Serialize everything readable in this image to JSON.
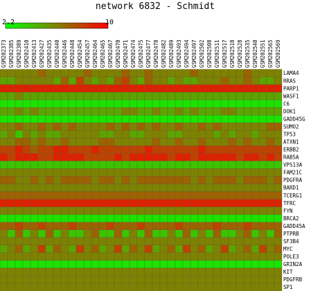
{
  "chart_data": {
    "type": "heatmap",
    "title": "network 6832 - Schmidt",
    "color_scale": {
      "min": 2.2,
      "max": 10,
      "min_label": "2.2",
      "max_label": "10",
      "low_color": "#00ff00",
      "mid_color": "#808000",
      "high_color": "#ff0000",
      "border_color": "#000000"
    },
    "columns": [
      "GSM202373",
      "GSM202385",
      "GSM202389",
      "GSM202410",
      "GSM202413",
      "GSM202427",
      "GSM202435",
      "GSM202440",
      "GSM202446",
      "GSM202448",
      "GSM202454",
      "GSM202457",
      "GSM202464",
      "GSM202465",
      "GSM202467",
      "GSM202470",
      "GSM202471",
      "GSM202474",
      "GSM202475",
      "GSM202477",
      "GSM202478",
      "GSM202482",
      "GSM202489",
      "GSM202493",
      "GSM202494",
      "GSM202497",
      "GSM202502",
      "GSM202508",
      "GSM202511",
      "GSM202517",
      "GSM202518",
      "GSM202528",
      "GSM202535",
      "GSM202540",
      "GSM202551",
      "GSM202565",
      "GSM202569"
    ],
    "rows": [
      "LAMA4",
      "RRAS",
      "PARP1",
      "WASF1",
      "C6",
      "DOK1",
      "GADD45G",
      "SUMO2",
      "TP53",
      "ATXN1",
      "ERBB2",
      "RAB5A",
      "VPS13A",
      "FAM21C",
      "PDGFRA",
      "BARD1",
      "TCERG1",
      "TFRC",
      "FYN",
      "BRCA2",
      "GADD45A",
      "PTPRB",
      "SF3B4",
      "MYC",
      "POLE3",
      "GRIN2A",
      "KIT",
      "PDGFRB",
      "SP1"
    ],
    "values": [
      [
        6,
        6,
        6,
        6,
        6,
        7,
        6,
        6,
        6,
        6,
        6,
        7,
        6,
        6,
        6,
        6,
        7,
        6,
        6,
        7,
        6,
        6,
        6,
        6,
        6,
        7,
        6,
        6,
        6,
        6,
        6,
        6,
        7,
        6,
        6,
        6,
        6
      ],
      [
        5,
        5,
        6,
        6,
        6,
        6,
        6,
        5,
        7,
        5,
        8,
        6,
        5,
        6,
        5,
        7,
        8,
        6,
        5,
        7,
        6,
        6,
        5,
        6,
        5,
        5,
        6,
        6,
        6,
        7,
        6,
        6,
        7,
        6,
        5,
        5,
        6
      ],
      [
        9,
        9,
        9,
        9,
        9,
        9,
        9,
        9,
        9,
        9,
        9,
        9,
        9,
        9,
        9,
        9,
        9,
        9,
        9,
        9,
        9,
        9,
        9,
        9,
        9,
        9,
        9,
        9,
        9,
        9,
        9,
        9,
        9,
        9,
        9,
        9,
        9
      ],
      [
        5,
        5,
        6,
        5,
        5,
        5,
        5,
        5,
        5,
        5,
        5,
        5,
        5,
        5,
        5,
        5,
        5,
        5,
        5,
        5,
        5,
        5,
        5,
        5,
        5,
        5,
        5,
        5,
        5,
        5,
        5,
        5,
        5,
        5,
        5,
        5,
        5
      ],
      [
        3,
        3,
        3,
        3,
        3,
        3,
        3,
        3,
        3,
        3,
        3,
        3,
        3,
        3,
        3,
        3,
        3,
        3,
        3,
        3,
        3,
        3,
        3,
        3,
        3,
        3,
        3,
        3,
        3,
        3,
        3,
        3,
        3,
        3,
        3,
        3,
        3
      ],
      [
        5,
        5,
        6,
        5,
        6,
        5,
        5,
        5,
        5,
        5,
        5,
        5,
        5,
        5,
        5,
        5,
        6,
        6,
        5,
        5,
        6,
        5,
        5,
        6,
        5,
        6,
        5,
        5,
        5,
        6,
        6,
        5,
        5,
        5,
        5,
        5,
        5
      ],
      [
        3,
        3,
        3,
        3,
        3,
        3,
        3,
        3,
        3,
        3,
        3,
        3,
        3,
        3,
        3,
        3,
        3,
        3,
        3,
        3,
        3,
        3,
        3,
        3,
        3,
        3,
        3,
        3,
        3,
        3,
        3,
        3,
        3,
        3,
        3,
        3,
        3
      ],
      [
        6,
        6,
        7,
        6,
        6,
        7,
        6,
        7,
        6,
        7,
        6,
        6,
        6,
        6,
        7,
        6,
        7,
        6,
        7,
        6,
        7,
        6,
        6,
        7,
        6,
        6,
        7,
        6,
        7,
        6,
        6,
        6,
        6,
        6,
        6,
        7,
        7
      ],
      [
        5,
        6,
        4,
        6,
        5,
        6,
        5,
        5,
        6,
        6,
        6,
        6,
        6,
        5,
        5,
        6,
        6,
        5,
        5,
        6,
        6,
        6,
        5,
        5,
        6,
        6,
        6,
        6,
        5,
        6,
        5,
        6,
        6,
        5,
        6,
        6,
        6
      ],
      [
        6,
        6,
        7,
        7,
        6,
        7,
        6,
        6,
        7,
        6,
        6,
        6,
        6,
        7,
        7,
        6,
        6,
        6,
        6,
        6,
        7,
        6,
        6,
        7,
        6,
        6,
        7,
        6,
        6,
        6,
        7,
        6,
        7,
        6,
        6,
        7,
        6
      ],
      [
        8,
        8,
        9,
        8,
        7,
        8,
        8,
        9,
        9,
        8,
        8,
        8,
        9,
        8,
        8,
        8,
        8,
        8,
        8,
        9,
        8,
        8,
        8,
        8,
        8,
        8,
        9,
        8,
        8,
        8,
        8,
        8,
        8,
        8,
        8,
        8,
        8
      ],
      [
        9,
        8,
        9,
        9,
        9,
        8,
        8,
        9,
        9,
        9,
        9,
        8,
        8,
        8,
        8,
        9,
        8,
        9,
        9,
        9,
        9,
        9,
        8,
        9,
        9,
        8,
        9,
        9,
        9,
        9,
        9,
        8,
        9,
        9,
        8,
        9,
        8
      ],
      [
        4,
        4,
        4,
        4,
        4,
        4,
        4,
        4,
        4,
        4,
        4,
        4,
        4,
        4,
        4,
        4,
        4,
        4,
        4,
        4,
        4,
        4,
        4,
        4,
        4,
        4,
        4,
        4,
        4,
        4,
        4,
        4,
        4,
        4,
        4,
        4,
        4
      ],
      [
        6,
        6,
        6,
        6,
        6,
        6,
        6,
        6,
        6,
        6,
        6,
        6,
        6,
        6,
        6,
        6,
        6,
        6,
        6,
        6,
        6,
        6,
        6,
        6,
        6,
        6,
        6,
        6,
        6,
        6,
        6,
        6,
        6,
        6,
        6,
        6,
        6
      ],
      [
        7,
        7,
        6,
        6,
        7,
        6,
        7,
        6,
        7,
        7,
        7,
        7,
        6,
        7,
        7,
        6,
        7,
        6,
        7,
        7,
        7,
        7,
        7,
        7,
        7,
        6,
        7,
        6,
        7,
        7,
        7,
        6,
        7,
        7,
        7,
        6,
        7
      ],
      [
        6,
        6,
        6,
        6,
        6,
        6,
        6,
        6,
        6,
        6,
        6,
        6,
        6,
        6,
        6,
        6,
        6,
        6,
        6,
        6,
        6,
        6,
        6,
        6,
        6,
        6,
        6,
        6,
        6,
        6,
        6,
        6,
        6,
        6,
        6,
        6,
        6
      ],
      [
        7,
        7,
        7,
        7,
        7,
        7,
        7,
        7,
        7,
        7,
        7,
        7,
        7,
        7,
        7,
        7,
        7,
        7,
        7,
        7,
        7,
        7,
        7,
        7,
        7,
        7,
        7,
        7,
        7,
        7,
        7,
        7,
        7,
        7,
        7,
        7,
        7
      ],
      [
        9,
        9,
        9,
        9,
        9,
        9,
        9,
        9,
        9,
        9,
        9,
        9,
        9,
        9,
        9,
        9,
        9,
        9,
        9,
        9,
        9,
        9,
        9,
        9,
        9,
        9,
        9,
        9,
        9,
        9,
        9,
        9,
        9,
        9,
        9,
        9,
        9
      ],
      [
        6,
        6,
        6,
        6,
        6,
        6,
        6,
        6,
        6,
        6,
        6,
        6,
        6,
        6,
        6,
        6,
        6,
        6,
        6,
        6,
        6,
        6,
        6,
        6,
        6,
        6,
        6,
        6,
        6,
        6,
        6,
        6,
        6,
        6,
        6,
        6,
        6
      ],
      [
        3,
        3,
        3,
        3,
        3,
        3,
        3,
        3,
        3,
        3,
        3,
        3,
        3,
        3,
        3,
        3,
        3,
        3,
        3,
        3,
        3,
        3,
        3,
        3,
        3,
        3,
        3,
        3,
        3,
        3,
        3,
        3,
        3,
        3,
        3,
        3,
        3
      ],
      [
        7,
        7,
        8,
        7,
        7,
        8,
        7,
        7,
        7,
        8,
        7,
        7,
        7,
        7,
        8,
        7,
        7,
        7,
        8,
        7,
        7,
        7,
        7,
        8,
        7,
        7,
        7,
        7,
        8,
        7,
        7,
        7,
        8,
        7,
        7,
        7,
        7
      ],
      [
        6,
        4,
        7,
        4,
        6,
        4,
        7,
        4,
        6,
        4,
        4,
        6,
        7,
        4,
        4,
        7,
        4,
        6,
        4,
        7,
        4,
        4,
        6,
        4,
        7,
        4,
        6,
        4,
        7,
        4,
        4,
        6,
        7,
        4,
        6,
        4,
        7
      ],
      [
        6,
        6,
        6,
        6,
        6,
        6,
        6,
        6,
        6,
        6,
        6,
        6,
        6,
        6,
        6,
        6,
        6,
        6,
        6,
        6,
        6,
        6,
        6,
        6,
        6,
        6,
        6,
        6,
        6,
        6,
        6,
        6,
        6,
        6,
        6,
        6,
        6
      ],
      [
        5,
        6,
        7,
        5,
        6,
        8,
        5,
        7,
        6,
        5,
        8,
        6,
        7,
        5,
        6,
        8,
        5,
        7,
        6,
        8,
        5,
        6,
        7,
        5,
        8,
        6,
        7,
        5,
        6,
        8,
        5,
        6,
        7,
        5,
        8,
        6,
        7
      ],
      [
        6,
        6,
        6,
        6,
        6,
        6,
        6,
        6,
        6,
        6,
        6,
        6,
        6,
        6,
        6,
        6,
        6,
        6,
        6,
        6,
        6,
        6,
        6,
        6,
        6,
        6,
        6,
        6,
        6,
        6,
        6,
        6,
        6,
        6,
        6,
        6,
        6
      ],
      [
        3,
        3,
        3,
        3,
        3,
        3,
        3,
        3,
        3,
        3,
        3,
        3,
        3,
        3,
        3,
        3,
        3,
        3,
        3,
        3,
        3,
        3,
        3,
        3,
        3,
        3,
        3,
        3,
        3,
        3,
        3,
        3,
        3,
        3,
        3,
        3,
        3
      ],
      [
        6,
        6,
        6,
        6,
        6,
        6,
        6,
        6,
        6,
        6,
        6,
        6,
        6,
        6,
        6,
        6,
        6,
        6,
        6,
        6,
        6,
        6,
        6,
        6,
        6,
        6,
        6,
        6,
        6,
        6,
        6,
        6,
        6,
        6,
        6,
        6,
        6
      ],
      [
        6,
        6,
        6,
        6,
        6,
        6,
        6,
        6,
        6,
        6,
        6,
        6,
        6,
        6,
        6,
        6,
        6,
        6,
        6,
        6,
        6,
        6,
        6,
        6,
        6,
        6,
        6,
        6,
        6,
        6,
        6,
        6,
        6,
        6,
        6,
        6,
        6
      ],
      [
        6,
        6,
        6,
        6,
        6,
        6,
        6,
        6,
        6,
        6,
        6,
        6,
        6,
        6,
        6,
        6,
        6,
        6,
        6,
        6,
        6,
        6,
        6,
        6,
        6,
        6,
        6,
        6,
        6,
        6,
        6,
        6,
        6,
        6,
        6,
        6,
        6
      ]
    ]
  }
}
